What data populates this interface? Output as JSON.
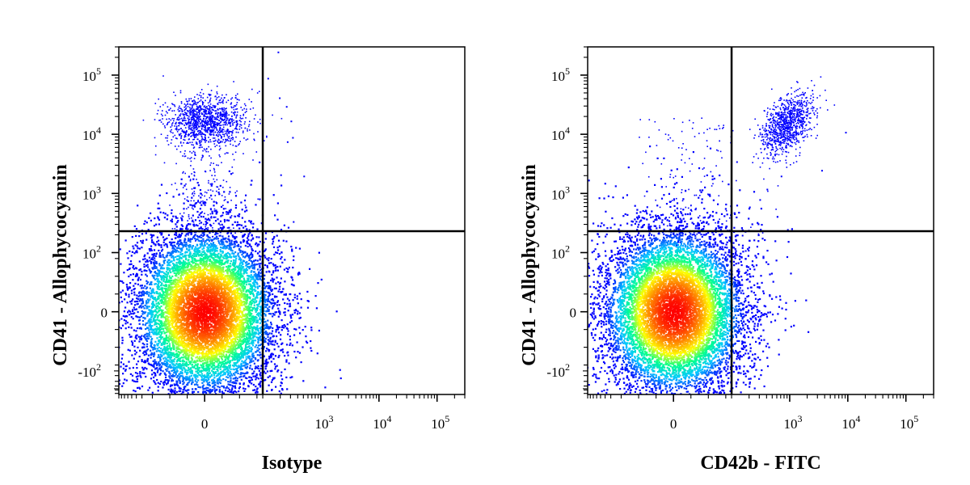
{
  "chart_data": [
    {
      "type": "scatter",
      "title": "",
      "xlabel": "Isotype",
      "ylabel": "CD41 - Allophycocyanin",
      "x_scale": "biexponential",
      "y_scale": "biexponential",
      "xlim": [
        -300,
        300000
      ],
      "ylim": [
        -250,
        300000
      ],
      "x_tick_labels": [
        {
          "value": 0,
          "base": "0",
          "exp": ""
        },
        {
          "value": 1000,
          "base": "10",
          "exp": "3"
        },
        {
          "value": 10000,
          "base": "10",
          "exp": "4"
        },
        {
          "value": 100000,
          "base": "10",
          "exp": "5"
        }
      ],
      "y_tick_labels": [
        {
          "value": -100,
          "base": "-10",
          "exp": "2"
        },
        {
          "value": 0,
          "base": "0",
          "exp": ""
        },
        {
          "value": 100,
          "base": "10",
          "exp": "2"
        },
        {
          "value": 1000,
          "base": "10",
          "exp": "3"
        },
        {
          "value": 10000,
          "base": "10",
          "exp": "4"
        },
        {
          "value": 100000,
          "base": "10",
          "exp": "5"
        }
      ],
      "quadrant_gate": {
        "x": 100,
        "y": 230
      },
      "populations": [
        {
          "name": "CD41- negative cluster",
          "center": {
            "x": 0,
            "y": 0
          },
          "density": "very high",
          "count_estimate": 20000
        },
        {
          "name": "CD41+ isotype-negative cluster",
          "center": {
            "x": 0,
            "y": 17000
          },
          "density": "medium",
          "count_estimate": 1100
        }
      ],
      "points": [
        {
          "x": 180,
          "y": 250000
        },
        {
          "x": 120,
          "y": 90000
        },
        {
          "x": 190,
          "y": 42000
        },
        {
          "x": 250,
          "y": 30000
        },
        {
          "x": 300,
          "y": 17000
        },
        {
          "x": 320,
          "y": 9000
        },
        {
          "x": 260,
          "y": 7600
        },
        {
          "x": 500,
          "y": 2000
        },
        {
          "x": 200,
          "y": 2100
        },
        {
          "x": 330,
          "y": 340
        },
        {
          "x": 360,
          "y": 5
        },
        {
          "x": 150,
          "y": 180
        },
        {
          "x": 130,
          "y": 30
        }
      ],
      "color_scale": [
        "#0000ff",
        "#00c8ff",
        "#00ff90",
        "#ffff00",
        "#ff8000",
        "#ff0000"
      ],
      "point_color": "#0000ff",
      "grid": false
    },
    {
      "type": "scatter",
      "title": "",
      "xlabel": "CD42b - FITC",
      "ylabel": "CD41 - Allophycocyanin",
      "x_scale": "biexponential",
      "y_scale": "biexponential",
      "xlim": [
        -300,
        300000
      ],
      "ylim": [
        -250,
        300000
      ],
      "x_tick_labels": [
        {
          "value": 0,
          "base": "0",
          "exp": ""
        },
        {
          "value": 1000,
          "base": "10",
          "exp": "3"
        },
        {
          "value": 10000,
          "base": "10",
          "exp": "4"
        },
        {
          "value": 100000,
          "base": "10",
          "exp": "5"
        }
      ],
      "y_tick_labels": [
        {
          "value": -100,
          "base": "-10",
          "exp": "2"
        },
        {
          "value": 0,
          "base": "0",
          "exp": ""
        },
        {
          "value": 100,
          "base": "10",
          "exp": "2"
        },
        {
          "value": 1000,
          "base": "10",
          "exp": "3"
        },
        {
          "value": 10000,
          "base": "10",
          "exp": "4"
        },
        {
          "value": 100000,
          "base": "10",
          "exp": "5"
        }
      ],
      "quadrant_gate": {
        "x": 100,
        "y": 230
      },
      "populations": [
        {
          "name": "double-negative cluster",
          "center": {
            "x": 0,
            "y": 0
          },
          "density": "very high",
          "count_estimate": 20000
        },
        {
          "name": "CD41+ CD42b+ cluster",
          "center": {
            "x": 900,
            "y": 15000
          },
          "density": "medium",
          "count_estimate": 900
        }
      ],
      "points": [
        {
          "x": 9000,
          "y": 11000
        },
        {
          "x": 3500,
          "y": 2500
        },
        {
          "x": 700,
          "y": 2000
        },
        {
          "x": 400,
          "y": 1200
        },
        {
          "x": 120,
          "y": 3500
        },
        {
          "x": 200,
          "y": 600
        },
        {
          "x": 300,
          "y": 800
        },
        {
          "x": 900,
          "y": 250
        },
        {
          "x": 150,
          "y": 200
        },
        {
          "x": 130,
          "y": 140
        },
        {
          "x": 170,
          "y": 110
        },
        {
          "x": 110,
          "y": 60
        }
      ],
      "color_scale": [
        "#0000ff",
        "#00c8ff",
        "#00ff90",
        "#ffff00",
        "#ff8000",
        "#ff0000"
      ],
      "point_color": "#0000ff",
      "grid": false
    }
  ]
}
